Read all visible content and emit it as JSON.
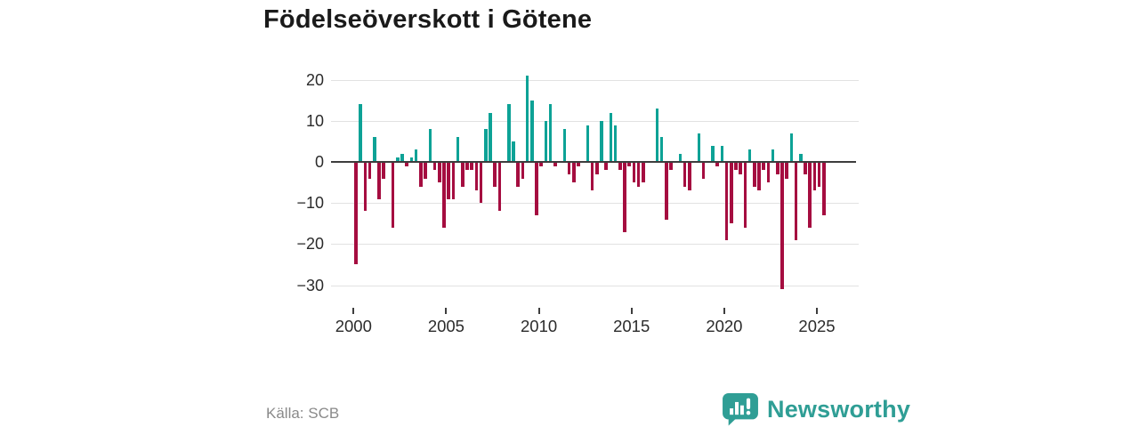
{
  "title": "Födelseöverskott i Götene",
  "source": {
    "label": "Källa: SCB"
  },
  "branding": {
    "name": "Newsworthy",
    "icon": "newsworthy-chart-bubble-icon",
    "color": "#2f9e95"
  },
  "colors": {
    "positive": "#0da296",
    "negative": "#a50d40",
    "zero_line": "#3d3d3d",
    "gridline": "#e2e2e2",
    "title_text": "#1a1a1a",
    "axis_text": "#2b2b2b",
    "source_text": "#8a8a8a",
    "background": "#ffffff"
  },
  "chart_data": {
    "type": "bar",
    "title": "Födelseöverskott i Götene",
    "frequency": "quarterly",
    "period": "2000 Q1 – 2025 Q2",
    "start_year": 2000,
    "values": [
      -25,
      14,
      -12,
      -4,
      6,
      -9,
      -4,
      0,
      -16,
      1,
      2,
      -1,
      1,
      3,
      -6,
      -4,
      8,
      -2,
      -5,
      -16,
      -9,
      -9,
      6,
      -6,
      -2,
      -2,
      -7,
      -10,
      8,
      12,
      -6,
      -12,
      0,
      14,
      5,
      -6,
      -4,
      21,
      15,
      -13,
      -1,
      10,
      14,
      -1,
      0,
      8,
      -3,
      -5,
      -1,
      0,
      9,
      -7,
      -3,
      10,
      -2,
      12,
      9,
      -2,
      -17,
      -1,
      -5,
      -6,
      -5,
      0,
      0,
      13,
      6,
      -14,
      -2,
      0,
      2,
      -6,
      -7,
      0,
      7,
      -4,
      0,
      4,
      -1,
      4,
      -19,
      -15,
      -2,
      -3,
      -16,
      3,
      -6,
      -7,
      -2,
      -5,
      3,
      -3,
      -31,
      -4,
      7,
      -19,
      2,
      -3,
      -16,
      -7,
      -6,
      -13
    ],
    "x_tick_labels": [
      "2000",
      "2005",
      "2010",
      "2015",
      "2020",
      "2025"
    ],
    "x_tick_years": [
      2000,
      2005,
      2010,
      2015,
      2020,
      2025
    ],
    "y_ticks": [
      20,
      10,
      0,
      -10,
      -20,
      -30
    ],
    "y_tick_labels": [
      "20",
      "10",
      "0",
      "−10",
      "−20",
      "−30"
    ],
    "ylim": [
      -33,
      23
    ],
    "grid": "horizontal",
    "legend": "none"
  }
}
